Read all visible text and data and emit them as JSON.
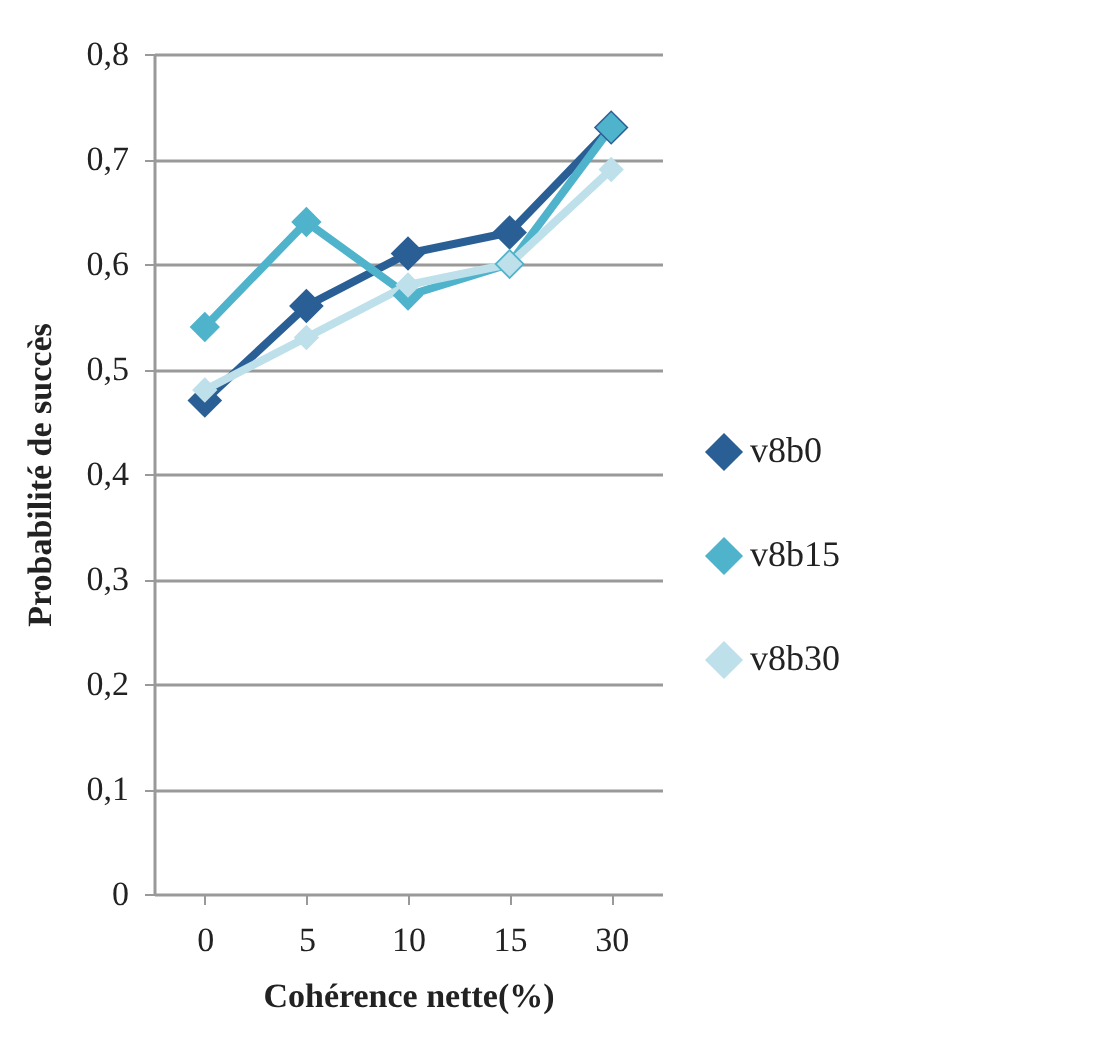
{
  "chart_data": {
    "type": "line",
    "xlabel": "Cohérence nette(%)",
    "ylabel": "Probabilité de succès",
    "categories": [
      "0",
      "5",
      "10",
      "15",
      "30"
    ],
    "series": [
      {
        "name": "v8b0",
        "color": "#2a5f96",
        "values": [
          0.47,
          0.56,
          0.61,
          0.63,
          0.73
        ]
      },
      {
        "name": "v8b15",
        "color": "#4fb3cc",
        "values": [
          0.54,
          0.64,
          0.57,
          0.6,
          0.73
        ]
      },
      {
        "name": "v8b30",
        "color": "#bde0ea",
        "values": [
          0.48,
          0.53,
          0.58,
          0.6,
          0.69
        ]
      }
    ],
    "ylim": [
      0,
      0.8
    ],
    "yticks": [
      {
        "value": 0,
        "label": "0"
      },
      {
        "value": 0.1,
        "label": "0,1"
      },
      {
        "value": 0.2,
        "label": "0,2"
      },
      {
        "value": 0.3,
        "label": "0,3"
      },
      {
        "value": 0.4,
        "label": "0,4"
      },
      {
        "value": 0.5,
        "label": "0,5"
      },
      {
        "value": 0.6,
        "label": "0,6"
      },
      {
        "value": 0.7,
        "label": "0,7"
      },
      {
        "value": 0.8,
        "label": "0,8"
      }
    ],
    "grid": "y",
    "legend": "right",
    "marker": "diamond",
    "line_style": "solid"
  }
}
